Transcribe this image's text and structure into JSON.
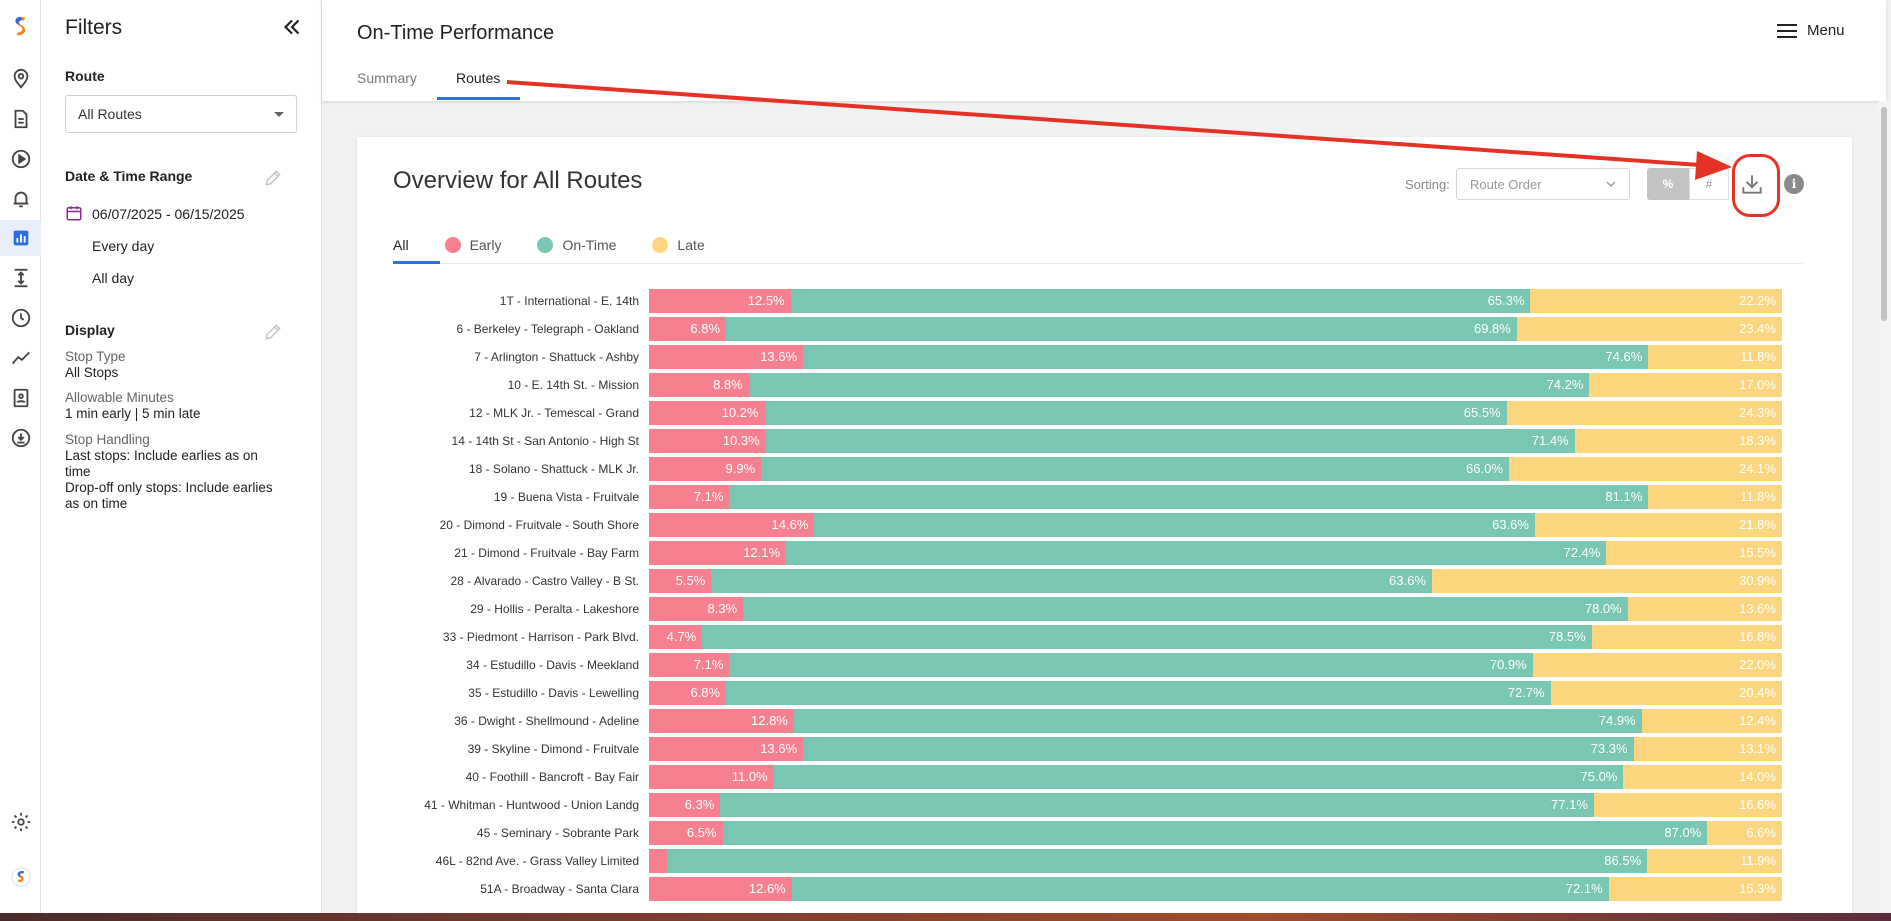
{
  "app": {
    "page_title": "On-Time Performance",
    "menu_label": "Menu",
    "tabs": [
      {
        "label": "Summary",
        "active": false
      },
      {
        "label": "Routes",
        "active": true
      }
    ]
  },
  "rail": {
    "icons": [
      "logo-icon",
      "location-icon",
      "document-icon",
      "play-icon",
      "alert-bell-icon",
      "bar-chart-icon",
      "vertical-expand-icon",
      "clock-icon",
      "trend-line-icon",
      "report-icon",
      "download-circle-icon",
      "gear-icon",
      "brand-icon"
    ]
  },
  "filters": {
    "title": "Filters",
    "route_label": "Route",
    "route_value": "All Routes",
    "date_label": "Date & Time Range",
    "date_range": "06/07/2025 - 06/15/2025",
    "days": "Every day",
    "time": "All day",
    "display_label": "Display",
    "stop_type_label": "Stop Type",
    "stop_type_value": "All Stops",
    "allowable_label": "Allowable Minutes",
    "allowable_value": "1 min early | 5 min late",
    "stop_handling_label": "Stop Handling",
    "stop_handling_last": "Last stops: Include earlies as on time",
    "stop_handling_dropoff": "Drop-off only stops: Include earlies as on time"
  },
  "card": {
    "title": "Overview for All Routes",
    "sorting_label": "Sorting:",
    "sorting_value": "Route Order",
    "toggle_pct": "%",
    "toggle_num": "#",
    "info": "i",
    "legend": [
      {
        "label": "All",
        "color": ""
      },
      {
        "label": "Early",
        "color": "#f6808f"
      },
      {
        "label": "On-Time",
        "color": "#79c6b3"
      },
      {
        "label": "Late",
        "color": "#fcd57f"
      }
    ]
  },
  "colors": {
    "early": "#f6808f",
    "ontime": "#79c6b3",
    "late": "#fcd57f",
    "accent": "#2a6fdb",
    "highlight": "#e53224"
  },
  "chart_data": {
    "type": "bar",
    "stacked": true,
    "orientation": "horizontal",
    "categories": [
      "1T - International - E. 14th",
      "6 - Berkeley - Telegraph - Oakland",
      "7 - Arlington - Shattuck - Ashby",
      "10 - E. 14th St. - Mission",
      "12 - MLK Jr. - Temescal - Grand",
      "14 - 14th St - San Antonio - High St",
      "18 - Solano - Shattuck - MLK Jr.",
      "19 - Buena Vista - Fruitvale",
      "20 - Dimond - Fruitvale - South Shore",
      "21 - Dimond - Fruitvale - Bay Farm",
      "28 - Alvarado - Castro Valley - B St.",
      "29 - Hollis - Peralta - Lakeshore",
      "33 - Piedmont - Harrison - Park Blvd.",
      "34 - Estudillo - Davis - Meekland",
      "35 - Estudillo - Davis - Lewelling",
      "36 - Dwight - Shellmound - Adeline",
      "39 - Skyline - Dimond - Fruitvale",
      "40 - Foothill - Bancroft - Bay Fair",
      "41 - Whitman - Huntwood - Union Landg",
      "45 - Seminary - Sobrante Park",
      "46L - 82nd Ave. - Grass Valley Limited",
      "51A - Broadway - Santa Clara"
    ],
    "series": [
      {
        "name": "Early",
        "values": [
          12.5,
          6.8,
          13.6,
          8.8,
          10.2,
          10.3,
          9.9,
          7.1,
          14.6,
          12.1,
          5.5,
          8.3,
          4.7,
          7.1,
          6.8,
          12.8,
          13.6,
          11.0,
          6.3,
          6.5,
          1.6,
          12.6
        ],
        "labels": [
          "12.5%",
          "6.8%",
          "13.6%",
          "8.8%",
          "10.2%",
          "10.3%",
          "9.9%",
          "7.1%",
          "14.6%",
          "12.1%",
          "5.5%",
          "8.3%",
          "4.7%",
          "7.1%",
          "6.8%",
          "12.8%",
          "13.6%",
          "11.0%",
          "6.3%",
          "6.5%",
          "",
          "12.6%"
        ]
      },
      {
        "name": "On-Time",
        "values": [
          65.3,
          69.8,
          74.6,
          74.2,
          65.5,
          71.4,
          66.0,
          81.1,
          63.6,
          72.4,
          63.6,
          78.0,
          78.5,
          70.9,
          72.7,
          74.9,
          73.3,
          75.0,
          77.1,
          87.0,
          86.5,
          72.1
        ],
        "labels": [
          "65.3%",
          "69.8%",
          "74.6%",
          "74.2%",
          "65.5%",
          "71.4%",
          "66.0%",
          "81.1%",
          "63.6%",
          "72.4%",
          "63.6%",
          "78.0%",
          "78.5%",
          "70.9%",
          "72.7%",
          "74.9%",
          "73.3%",
          "75.0%",
          "77.1%",
          "87.0%",
          "86.5%",
          "72.1%"
        ]
      },
      {
        "name": "Late",
        "values": [
          22.2,
          23.4,
          11.8,
          17.0,
          24.3,
          18.3,
          24.1,
          11.8,
          21.8,
          15.5,
          30.9,
          13.6,
          16.8,
          22.0,
          20.4,
          12.4,
          13.1,
          14.0,
          16.6,
          6.6,
          11.9,
          15.3
        ],
        "labels": [
          "22.2%",
          "23.4%",
          "11.8%",
          "17.0%",
          "24.3%",
          "18.3%",
          "24.1%",
          "11.8%",
          "21.8%",
          "15.5%",
          "30.9%",
          "13.6%",
          "16.8%",
          "22.0%",
          "20.4%",
          "12.4%",
          "13.1%",
          "14.0%",
          "16.6%",
          "6.6%",
          "11.9%",
          "15.3%"
        ]
      }
    ],
    "xlim": [
      0,
      100
    ]
  }
}
